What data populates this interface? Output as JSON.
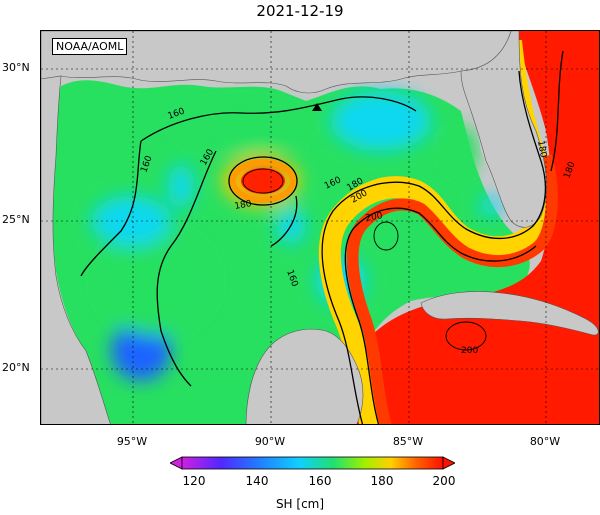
{
  "title": "2021-12-19",
  "credit": "NOAA/AOML",
  "map": {
    "lat_labels": [
      "30°N",
      "25°N",
      "20°N"
    ],
    "lon_labels": [
      "95°W",
      "90°W",
      "85°W",
      "80°W"
    ],
    "contour_labels": [
      "160",
      "160",
      "160",
      "180",
      "160",
      "180",
      "160",
      "180",
      "200",
      "200",
      "200",
      "180"
    ],
    "marker": "triangle",
    "colors": {
      "land": "#c8c8c8",
      "low": "#1e64ff",
      "cyan": "#10d8f0",
      "green": "#28e060",
      "yellow": "#f8e400",
      "orange": "#ff7a00",
      "red": "#ff1a00"
    }
  },
  "colorbar": {
    "ticks": [
      "120",
      "140",
      "160",
      "180",
      "200"
    ],
    "label": "SH [cm]",
    "colors": [
      "#d020e0",
      "#3030ff",
      "#10c8ff",
      "#20e070",
      "#a0f000",
      "#ffd000",
      "#ff6000",
      "#ff1000"
    ]
  }
}
